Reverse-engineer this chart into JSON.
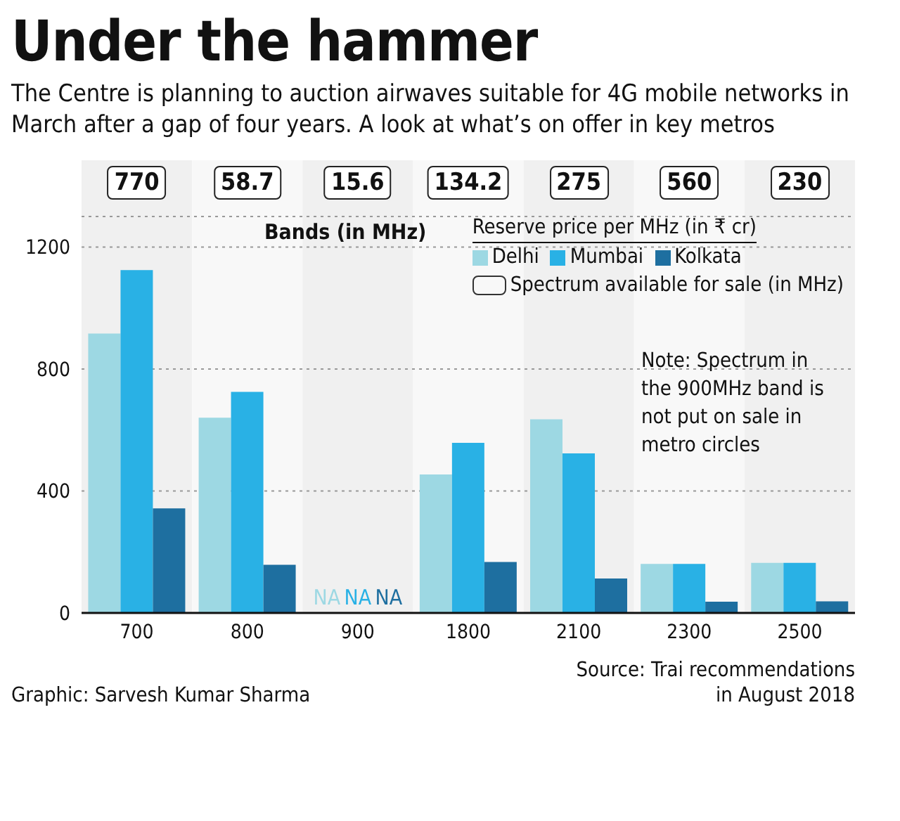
{
  "chart_data": {
    "type": "bar",
    "title": "Under the hammer",
    "subtitle": "The Centre is planning to auction airwaves suitable for 4G mobile networks in March after a gap of four years. A look at what’s on offer in key metros",
    "xlabel": "Bands (in MHz)",
    "legend_title": "Reserve price per MHz (in ₹ cr)",
    "categories": [
      "700",
      "800",
      "900",
      "1800",
      "2100",
      "2300",
      "2500"
    ],
    "series": [
      {
        "name": "Delhi",
        "color": "#9dd8e3",
        "values": [
          916,
          640,
          null,
          454,
          635,
          161,
          164
        ]
      },
      {
        "name": "Mumbai",
        "color": "#29b1e5",
        "values": [
          1124,
          725,
          null,
          558,
          523,
          161,
          164
        ]
      },
      {
        "name": "Kolkata",
        "color": "#1e6fa0",
        "values": [
          343,
          158,
          null,
          167,
          113,
          37,
          38
        ]
      }
    ],
    "ylim": [
      0,
      1300
    ],
    "yticks": [
      0,
      400,
      800,
      1200
    ],
    "grid": "y",
    "legend": "top right",
    "annotations": [
      "770",
      "58.7",
      "15.6",
      "134.2",
      "275",
      "560",
      "230",
      "NA",
      "NA",
      "NA",
      "Spectrum available for sale (in MHz)",
      "Note: Spectrum in the 900MHz band is not put on sale in metro circles",
      "Graphic: Sarvesh Kumar Sharma",
      "Source: Trai recommendations in August 2018"
    ]
  }
}
